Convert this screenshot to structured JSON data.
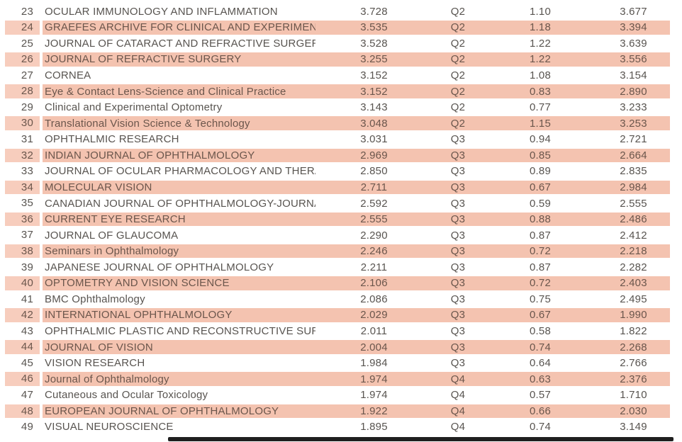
{
  "colors": {
    "row_highlight_main": "#f4c3b0",
    "row_highlight_rank": "#f7cdbd",
    "text_normal": "#585450",
    "text_highlight": "#6b564c",
    "bottom_bar": "#1f1f1f",
    "page_background": "#ffffff"
  },
  "table": {
    "rows": [
      {
        "rank": "23",
        "journal": "OCULAR IMMUNOLOGY AND INFLAMMATION",
        "values": [
          "3.728",
          "Q2",
          "1.10",
          "3.677"
        ],
        "highlighted": false
      },
      {
        "rank": "24",
        "journal": "GRAEFES ARCHIVE FOR CLINICAL AND EXPERIMENTAL O",
        "values": [
          "3.535",
          "Q2",
          "1.18",
          "3.394"
        ],
        "highlighted": true
      },
      {
        "rank": "25",
        "journal": "JOURNAL OF CATARACT AND REFRACTIVE SURGERY",
        "values": [
          "3.528",
          "Q2",
          "1.22",
          "3.639"
        ],
        "highlighted": false
      },
      {
        "rank": "26",
        "journal": "JOURNAL OF REFRACTIVE SURGERY",
        "values": [
          "3.255",
          "Q2",
          "1.22",
          "3.556"
        ],
        "highlighted": true
      },
      {
        "rank": "27",
        "journal": "CORNEA",
        "values": [
          "3.152",
          "Q2",
          "1.08",
          "3.154"
        ],
        "highlighted": false
      },
      {
        "rank": "28",
        "journal": "Eye & Contact Lens-Science and Clinical Practice",
        "values": [
          "3.152",
          "Q2",
          "0.83",
          "2.890"
        ],
        "highlighted": true
      },
      {
        "rank": "29",
        "journal": "Clinical and Experimental Optometry",
        "values": [
          "3.143",
          "Q2",
          "0.77",
          "3.233"
        ],
        "highlighted": false
      },
      {
        "rank": "30",
        "journal": "Translational Vision Science & Technology",
        "values": [
          "3.048",
          "Q2",
          "1.15",
          "3.253"
        ],
        "highlighted": true
      },
      {
        "rank": "31",
        "journal": "OPHTHALMIC RESEARCH",
        "values": [
          "3.031",
          "Q3",
          "0.94",
          "2.721"
        ],
        "highlighted": false
      },
      {
        "rank": "32",
        "journal": "INDIAN JOURNAL OF OPHTHALMOLOGY",
        "values": [
          "2.969",
          "Q3",
          "0.85",
          "2.664"
        ],
        "highlighted": true
      },
      {
        "rank": "33",
        "journal": "JOURNAL OF OCULAR PHARMACOLOGY AND THERAPEL",
        "values": [
          "2.850",
          "Q3",
          "0.89",
          "2.835"
        ],
        "highlighted": false
      },
      {
        "rank": "34",
        "journal": "MOLECULAR VISION",
        "values": [
          "2.711",
          "Q3",
          "0.67",
          "2.984"
        ],
        "highlighted": true
      },
      {
        "rank": "35",
        "journal": "CANADIAN JOURNAL OF OPHTHALMOLOGY-JOURNAL C",
        "values": [
          "2.592",
          "Q3",
          "0.59",
          "2.555"
        ],
        "highlighted": false
      },
      {
        "rank": "36",
        "journal": "CURRENT EYE RESEARCH",
        "values": [
          "2.555",
          "Q3",
          "0.88",
          "2.486"
        ],
        "highlighted": true
      },
      {
        "rank": "37",
        "journal": "JOURNAL OF GLAUCOMA",
        "values": [
          "2.290",
          "Q3",
          "0.87",
          "2.412"
        ],
        "highlighted": false
      },
      {
        "rank": "38",
        "journal": "Seminars in Ophthalmology",
        "values": [
          "2.246",
          "Q3",
          "0.72",
          "2.218"
        ],
        "highlighted": true
      },
      {
        "rank": "39",
        "journal": "JAPANESE JOURNAL OF OPHTHALMOLOGY",
        "values": [
          "2.211",
          "Q3",
          "0.87",
          "2.282"
        ],
        "highlighted": false
      },
      {
        "rank": "40",
        "journal": "OPTOMETRY AND VISION SCIENCE",
        "values": [
          "2.106",
          "Q3",
          "0.72",
          "2.403"
        ],
        "highlighted": true
      },
      {
        "rank": "41",
        "journal": "BMC Ophthalmology",
        "values": [
          "2.086",
          "Q3",
          "0.75",
          "2.495"
        ],
        "highlighted": false
      },
      {
        "rank": "42",
        "journal": "INTERNATIONAL OPHTHALMOLOGY",
        "values": [
          "2.029",
          "Q3",
          "0.67",
          "1.990"
        ],
        "highlighted": true
      },
      {
        "rank": "43",
        "journal": "OPHTHALMIC PLASTIC AND RECONSTRUCTIVE SURGERY",
        "values": [
          "2.011",
          "Q3",
          "0.58",
          "1.822"
        ],
        "highlighted": false
      },
      {
        "rank": "44",
        "journal": "JOURNAL OF VISION",
        "values": [
          "2.004",
          "Q3",
          "0.74",
          "2.268"
        ],
        "highlighted": true
      },
      {
        "rank": "45",
        "journal": "VISION RESEARCH",
        "values": [
          "1.984",
          "Q3",
          "0.64",
          "2.766"
        ],
        "highlighted": false
      },
      {
        "rank": "46",
        "journal": "Journal of Ophthalmology",
        "values": [
          "1.974",
          "Q4",
          "0.63",
          "2.376"
        ],
        "highlighted": true
      },
      {
        "rank": "47",
        "journal": "Cutaneous and Ocular Toxicology",
        "values": [
          "1.974",
          "Q4",
          "0.57",
          "1.710"
        ],
        "highlighted": false
      },
      {
        "rank": "48",
        "journal": "EUROPEAN JOURNAL OF OPHTHALMOLOGY",
        "values": [
          "1.922",
          "Q4",
          "0.66",
          "2.030"
        ],
        "highlighted": true
      },
      {
        "rank": "49",
        "journal": "VISUAL NEUROSCIENCE",
        "values": [
          "1.895",
          "Q4",
          "0.74",
          "3.149"
        ],
        "highlighted": false
      }
    ]
  }
}
